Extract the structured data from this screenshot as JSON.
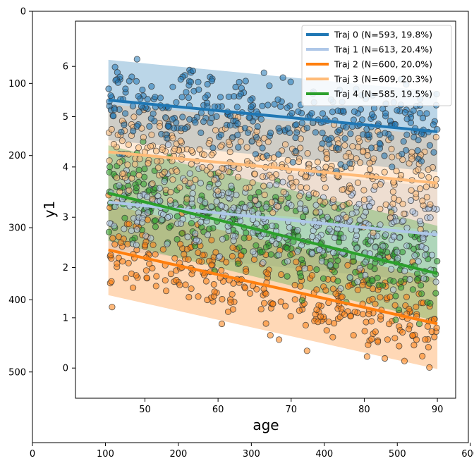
{
  "outer_axes": {
    "x_ticks": [
      "0",
      "100",
      "200",
      "300",
      "400",
      "500",
      "600"
    ],
    "y_ticks": [
      "0",
      "100",
      "200",
      "300",
      "400",
      "500"
    ]
  },
  "chart_data": {
    "type": "scatter",
    "title": "",
    "xlabel": "age",
    "ylabel": "y1",
    "xlim": [
      40.5,
      92.5
    ],
    "ylim": [
      -0.6,
      6.9
    ],
    "x_ticks": [
      "50",
      "60",
      "70",
      "80",
      "90"
    ],
    "y_ticks": [
      "0",
      "1",
      "2",
      "3",
      "4",
      "5",
      "6"
    ],
    "legend_position": "top-right",
    "grid": false,
    "series": [
      {
        "name": "Traj 0 (N=593, 19.8%)",
        "color": "#1f77b4",
        "line": {
          "x": [
            45,
            90
          ],
          "y": [
            5.33,
            4.7
          ]
        },
        "band_halfwidth": 0.8,
        "point_spread": 0.75
      },
      {
        "name": "Traj 1 (N=613, 20.4%)",
        "color": "#aec7e8",
        "line": {
          "x": [
            45,
            90
          ],
          "y": [
            3.3,
            2.65
          ]
        },
        "band_halfwidth": 0.95,
        "point_spread": 0.9
      },
      {
        "name": "Traj 2 (N=600, 20.0%)",
        "color": "#ff7f0e",
        "line": {
          "x": [
            45,
            90
          ],
          "y": [
            2.35,
            0.88
          ]
        },
        "band_halfwidth": 0.9,
        "point_spread": 0.8
      },
      {
        "name": "Traj 3 (N=609, 20.3%)",
        "color": "#ffbb78",
        "line": {
          "x": [
            45,
            90
          ],
          "y": [
            4.3,
            3.68
          ]
        },
        "band_halfwidth": 0.95,
        "point_spread": 0.85
      },
      {
        "name": "Traj 4 (N=585, 19.5%)",
        "color": "#2ca02c",
        "line": {
          "x": [
            45,
            90
          ],
          "y": [
            3.48,
            1.88
          ]
        },
        "band_halfwidth": 0.95,
        "point_spread": 0.85
      }
    ],
    "scatter_draw_order": [
      2,
      4,
      1,
      3,
      0
    ]
  }
}
